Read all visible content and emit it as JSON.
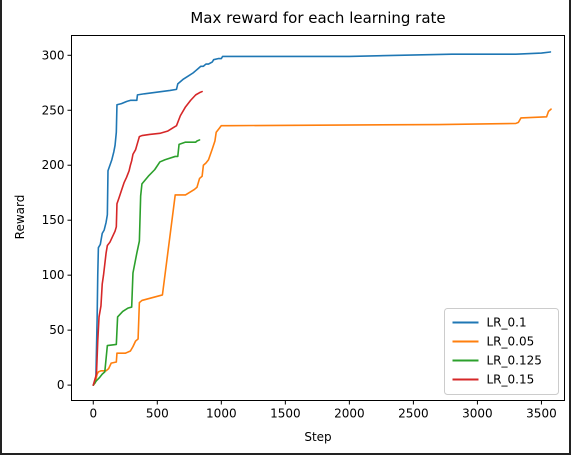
{
  "chart_data": {
    "type": "line",
    "title": "Max reward for each learning rate",
    "xlabel": "Step",
    "ylabel": "Reward",
    "xlim": [
      -170,
      3680
    ],
    "ylim": [
      -14,
      318
    ],
    "xticks": [
      0,
      500,
      1000,
      1500,
      2000,
      2500,
      3000,
      3500
    ],
    "yticks": [
      0,
      50,
      100,
      150,
      200,
      250,
      300
    ],
    "grid": false,
    "legend": "bottom-right",
    "series": [
      {
        "name": "LR_0.1",
        "color": "#1f77b4",
        "points": [
          [
            0,
            0
          ],
          [
            20,
            5
          ],
          [
            30,
            60
          ],
          [
            35,
            100
          ],
          [
            40,
            125
          ],
          [
            55,
            128
          ],
          [
            70,
            138
          ],
          [
            85,
            141
          ],
          [
            100,
            148
          ],
          [
            110,
            155
          ],
          [
            115,
            195
          ],
          [
            130,
            200
          ],
          [
            145,
            205
          ],
          [
            160,
            212
          ],
          [
            170,
            218
          ],
          [
            180,
            230
          ],
          [
            185,
            255
          ],
          [
            220,
            256
          ],
          [
            260,
            258
          ],
          [
            290,
            259
          ],
          [
            340,
            259
          ],
          [
            345,
            264
          ],
          [
            400,
            265
          ],
          [
            600,
            268
          ],
          [
            650,
            269
          ],
          [
            660,
            274
          ],
          [
            700,
            278
          ],
          [
            740,
            281
          ],
          [
            780,
            284
          ],
          [
            800,
            286
          ],
          [
            820,
            288
          ],
          [
            840,
            290
          ],
          [
            860,
            290
          ],
          [
            880,
            292
          ],
          [
            900,
            292
          ],
          [
            930,
            294
          ],
          [
            940,
            296
          ],
          [
            975,
            297
          ],
          [
            990,
            297
          ],
          [
            1000,
            297
          ],
          [
            1010,
            299
          ],
          [
            2000,
            299
          ],
          [
            2800,
            301
          ],
          [
            3300,
            301
          ],
          [
            3500,
            302
          ],
          [
            3570,
            303
          ]
        ]
      },
      {
        "name": "LR_0.05",
        "color": "#ff7f0e",
        "points": [
          [
            0,
            0
          ],
          [
            15,
            2
          ],
          [
            30,
            10
          ],
          [
            40,
            12
          ],
          [
            60,
            13
          ],
          [
            100,
            13
          ],
          [
            120,
            15
          ],
          [
            140,
            20
          ],
          [
            180,
            21
          ],
          [
            185,
            29
          ],
          [
            200,
            29
          ],
          [
            250,
            29
          ],
          [
            290,
            31
          ],
          [
            310,
            35
          ],
          [
            330,
            40
          ],
          [
            350,
            42
          ],
          [
            360,
            75
          ],
          [
            380,
            77
          ],
          [
            540,
            82
          ],
          [
            640,
            173
          ],
          [
            720,
            173
          ],
          [
            790,
            178
          ],
          [
            810,
            180
          ],
          [
            820,
            184
          ],
          [
            830,
            188
          ],
          [
            850,
            190
          ],
          [
            860,
            200
          ],
          [
            880,
            202
          ],
          [
            900,
            205
          ],
          [
            930,
            215
          ],
          [
            950,
            222
          ],
          [
            960,
            230
          ],
          [
            980,
            233
          ],
          [
            1000,
            236
          ],
          [
            1050,
            236
          ],
          [
            2700,
            237
          ],
          [
            3300,
            238
          ],
          [
            3320,
            239
          ],
          [
            3340,
            243
          ],
          [
            3540,
            244
          ],
          [
            3555,
            249
          ],
          [
            3575,
            251
          ]
        ]
      },
      {
        "name": "LR_0.125",
        "color": "#2ca02c",
        "points": [
          [
            0,
            0
          ],
          [
            25,
            4
          ],
          [
            50,
            7
          ],
          [
            70,
            10
          ],
          [
            90,
            12
          ],
          [
            110,
            36
          ],
          [
            180,
            37
          ],
          [
            190,
            62
          ],
          [
            230,
            67
          ],
          [
            270,
            70
          ],
          [
            300,
            71
          ],
          [
            310,
            102
          ],
          [
            340,
            120
          ],
          [
            360,
            131
          ],
          [
            370,
            172
          ],
          [
            380,
            183
          ],
          [
            430,
            190
          ],
          [
            480,
            196
          ],
          [
            520,
            203
          ],
          [
            560,
            205
          ],
          [
            640,
            208
          ],
          [
            660,
            208
          ],
          [
            670,
            219
          ],
          [
            720,
            221
          ],
          [
            780,
            221
          ],
          [
            800,
            221
          ],
          [
            810,
            222
          ],
          [
            830,
            223
          ]
        ]
      },
      {
        "name": "LR_0.15",
        "color": "#d62728",
        "points": [
          [
            0,
            0
          ],
          [
            25,
            10
          ],
          [
            35,
            40
          ],
          [
            45,
            62
          ],
          [
            60,
            72
          ],
          [
            70,
            92
          ],
          [
            80,
            100
          ],
          [
            90,
            110
          ],
          [
            100,
            120
          ],
          [
            110,
            127
          ],
          [
            130,
            130
          ],
          [
            150,
            135
          ],
          [
            170,
            140
          ],
          [
            180,
            144
          ],
          [
            185,
            165
          ],
          [
            200,
            170
          ],
          [
            220,
            177
          ],
          [
            240,
            184
          ],
          [
            260,
            189
          ],
          [
            280,
            195
          ],
          [
            290,
            200
          ],
          [
            300,
            204
          ],
          [
            310,
            210
          ],
          [
            330,
            214
          ],
          [
            340,
            218
          ],
          [
            350,
            222
          ],
          [
            360,
            226
          ],
          [
            380,
            227
          ],
          [
            440,
            228
          ],
          [
            520,
            229
          ],
          [
            580,
            231
          ],
          [
            650,
            236
          ],
          [
            680,
            245
          ],
          [
            720,
            253
          ],
          [
            760,
            259
          ],
          [
            800,
            264
          ],
          [
            830,
            266
          ],
          [
            850,
            267
          ]
        ]
      }
    ]
  }
}
